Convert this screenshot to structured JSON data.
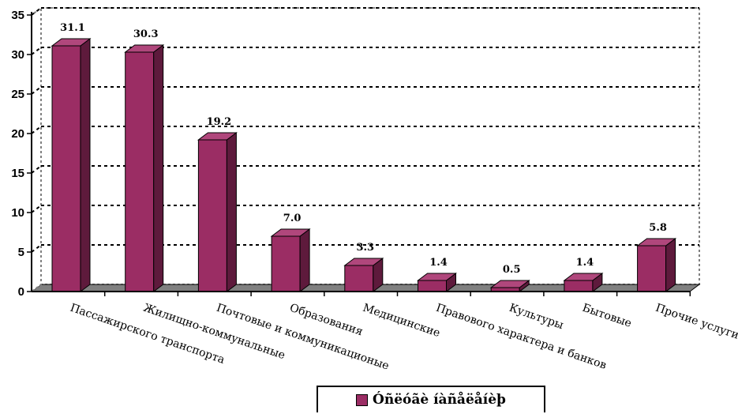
{
  "chart_data": {
    "type": "bar",
    "categories": [
      "Пассажирского транспорта",
      "Жилищно-коммунальные",
      "Почтовые и коммуникационые",
      "Образования",
      "Медицинские",
      "Правового характера и банков",
      "Культуры",
      "Бытовые",
      "Прочие услуги"
    ],
    "series": [
      {
        "name": "Óñëóãè íàñåëåíèþ",
        "values": [
          31.1,
          30.3,
          19.2,
          7.0,
          3.3,
          1.4,
          0.5,
          1.4,
          5.8
        ]
      }
    ],
    "data_labels": [
      "31.1",
      "30.3",
      "19.2",
      "7.0",
      "3.3",
      "1.4",
      "0.5",
      "1.4",
      "5.8"
    ],
    "y_ticks": [
      "0",
      "5",
      "10",
      "15",
      "20",
      "25",
      "30",
      "35"
    ],
    "ylim": [
      0,
      35
    ],
    "grid": "horizontal dotted",
    "legend_position": "bottom",
    "colors": {
      "bar_front": "#9b2d64",
      "bar_side": "#5e1a3c",
      "bar_top": "#b0477c",
      "floor": "#808080",
      "wall": "#ffffff"
    }
  }
}
